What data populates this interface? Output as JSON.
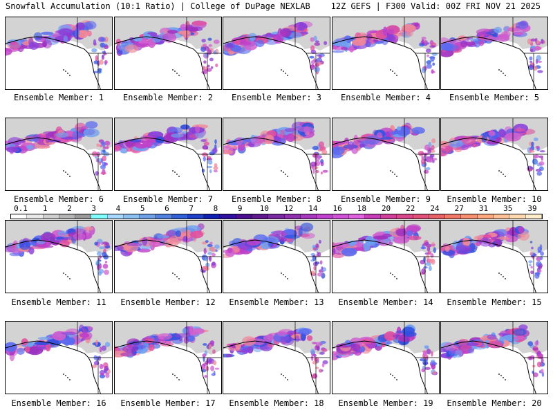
{
  "header": {
    "left": "Snowfall Accumulation (10:1 Ratio) | College of DuPage NEXLAB",
    "right": "12Z GEFS | F300 Valid: 00Z FRI NOV 21 2025"
  },
  "panels": [
    {
      "label": "Ensemble Member: 1"
    },
    {
      "label": "Ensemble Member: 2"
    },
    {
      "label": "Ensemble Member: 3"
    },
    {
      "label": "Ensemble Member: 4"
    },
    {
      "label": "Ensemble Member: 5"
    },
    {
      "label": "Ensemble Member: 6"
    },
    {
      "label": "Ensemble Member: 7"
    },
    {
      "label": "Ensemble Member: 8"
    },
    {
      "label": "Ensemble Member: 9"
    },
    {
      "label": "Ensemble Member: 10"
    },
    {
      "label": "Ensemble Member: 11"
    },
    {
      "label": "Ensemble Member: 12"
    },
    {
      "label": "Ensemble Member: 13"
    },
    {
      "label": "Ensemble Member: 14"
    },
    {
      "label": "Ensemble Member: 15"
    },
    {
      "label": "Ensemble Member: 16"
    },
    {
      "label": "Ensemble Member: 17"
    },
    {
      "label": "Ensemble Member: 18"
    },
    {
      "label": "Ensemble Member: 19"
    },
    {
      "label": "Ensemble Member: 20"
    }
  ],
  "colorbar": {
    "labels": [
      "0.1",
      "1",
      "2",
      "3",
      "4",
      "5",
      "6",
      "7",
      "8",
      "9",
      "10",
      "12",
      "14",
      "16",
      "18",
      "20",
      "22",
      "24",
      "27",
      "31",
      "35",
      "39"
    ],
    "colors": [
      "#ffffff",
      "#e8e8e8",
      "#cfcfcf",
      "#b5b5b5",
      "#9a9a9a",
      "#80ffff",
      "#a8d8ff",
      "#8cc0f0",
      "#70a0e8",
      "#5080e0",
      "#3060d8",
      "#2040c8",
      "#1020b0",
      "#3010a0",
      "#4a1090",
      "#601890",
      "#7a2aa0",
      "#9030b0",
      "#a838c0",
      "#c040d0",
      "#d050d8",
      "#e060e0",
      "#c83cb8",
      "#d04098",
      "#d84888",
      "#e05078",
      "#e86068",
      "#f07868",
      "#f89070",
      "#ffa880",
      "#ffc098",
      "#ffd8b0",
      "#ffeecc"
    ]
  }
}
